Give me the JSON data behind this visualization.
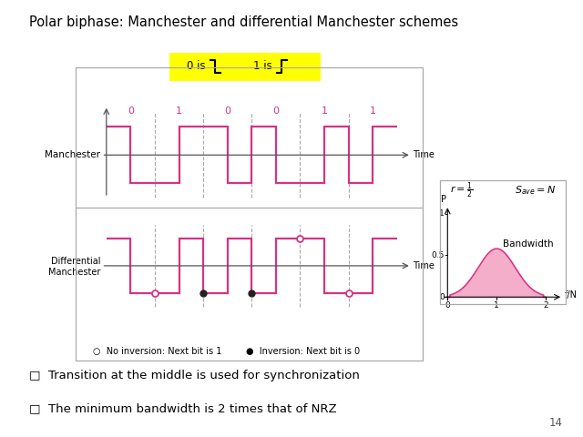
{
  "title": "Polar biphase: Manchester and differential Manchester schemes",
  "title_fontsize": 10.5,
  "bg_color": "#ffffff",
  "signal_color": "#d63384",
  "dashed_color": "#aaaaaa",
  "bit_color": "#d63384",
  "yellow": "#ffff00",
  "yellow_border": "#cccc00",
  "box_edge": "#aaaaaa",
  "bits": [
    "0",
    "1",
    "0",
    "0",
    "1",
    "1"
  ],
  "bullet_texts": [
    "Transition at the middle is used for synchronization",
    "The minimum bandwidth is 2 times that of NRZ"
  ],
  "page_number": "14",
  "bandwidth_fill": "#f4a0c0",
  "bandwidth_line": "#d63384",
  "axis_color": "#555555",
  "time_color": "#555555"
}
